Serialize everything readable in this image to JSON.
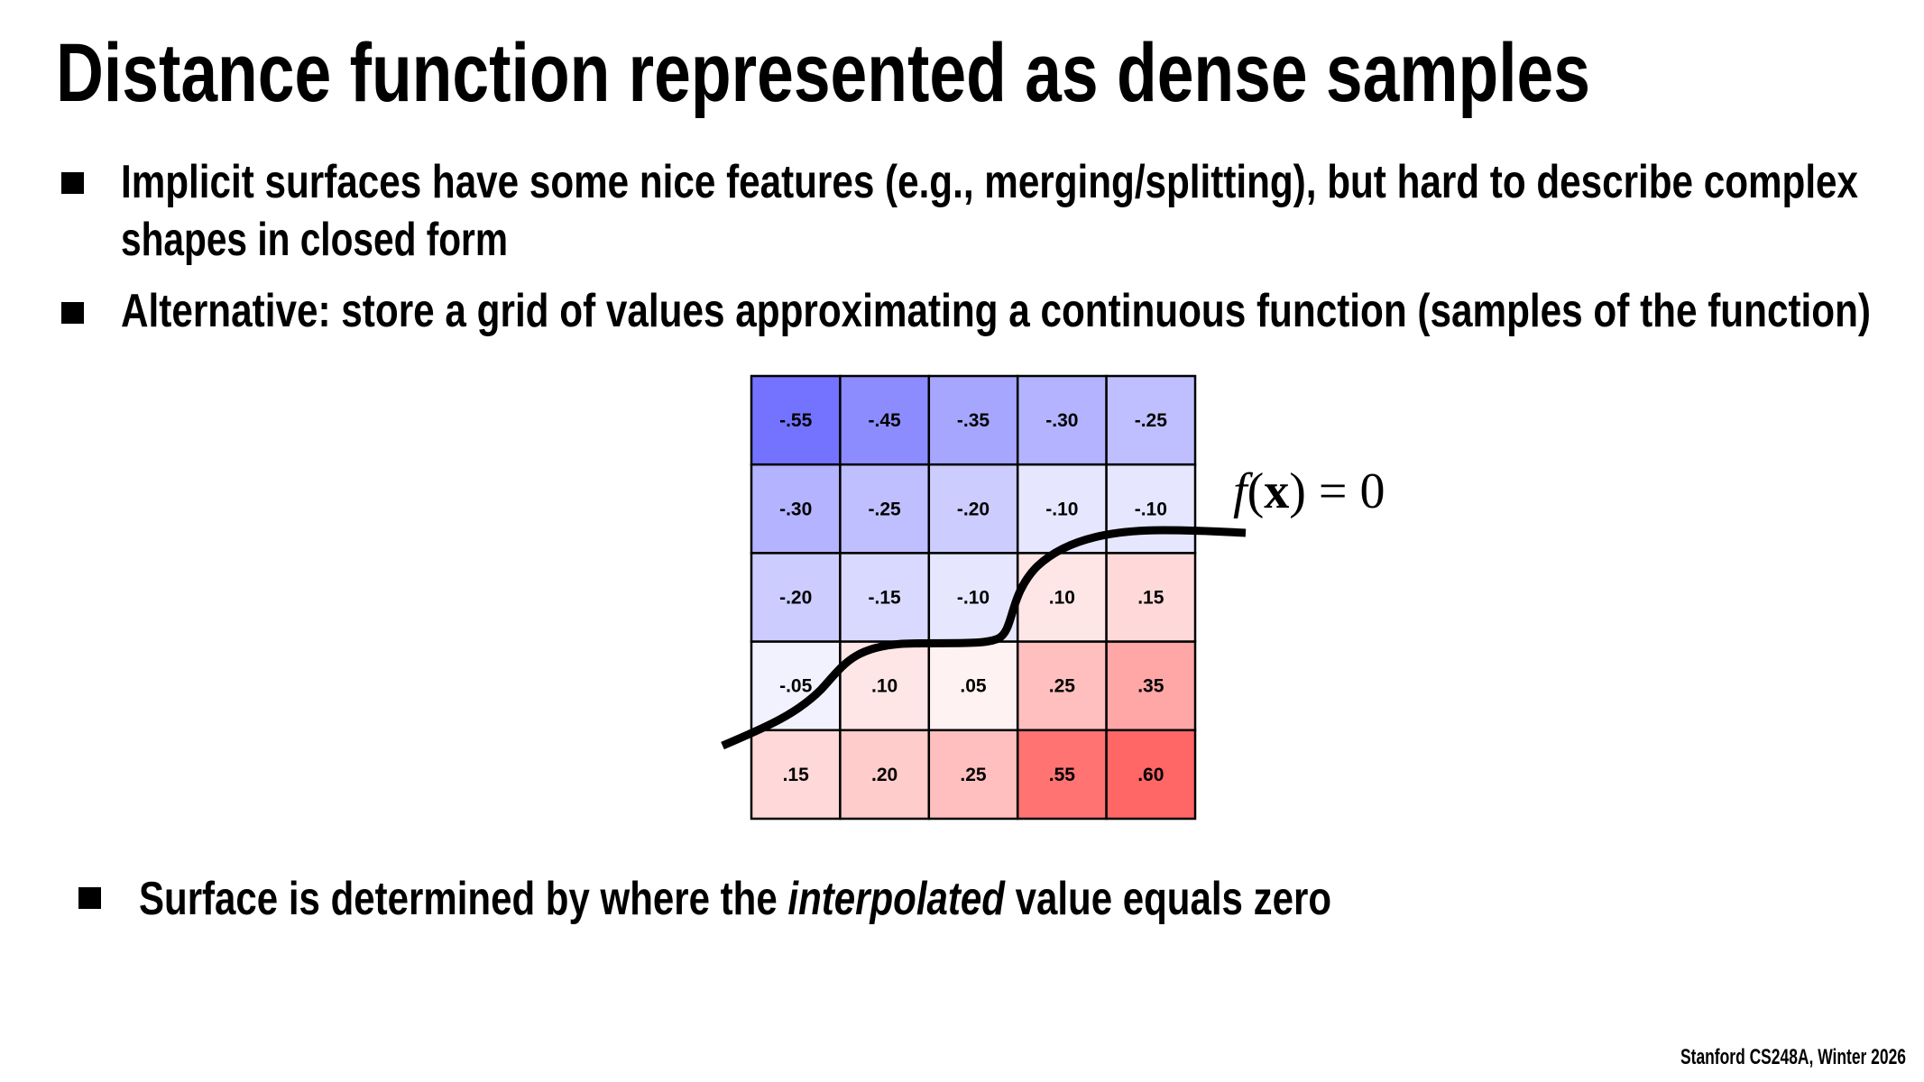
{
  "slide": {
    "title": "Distance function represented as dense samples",
    "bullets": [
      {
        "lines": [
          "Implicit surfaces have some nice features (e.g., merging/splitting), but hard to describe complex",
          "shapes in closed form"
        ]
      },
      {
        "lines": [
          "Alternative: store a grid of values approximating a continuous function (samples of the function)"
        ]
      }
    ],
    "bottom_bullet": {
      "before": "Surface is determined by where the ",
      "italic": "interpolated",
      "after": " value equals zero"
    },
    "footer": "Stanford CS248A, Winter 2026",
    "figure": {
      "equation": {
        "f": "f",
        "open": "(",
        "x": "x",
        "close": ")",
        "eq": " = 0"
      },
      "grid_labels": [
        [
          "-.55",
          "-.45",
          "-.35",
          "-.30",
          "-.25"
        ],
        [
          "-.30",
          "-.25",
          "-.20",
          "-.10",
          "-.10"
        ],
        [
          "-.20",
          "-.15",
          "-.10",
          ".10",
          ".15"
        ],
        [
          "-.05",
          ".10",
          ".05",
          ".25",
          ".35"
        ],
        [
          ".15",
          ".20",
          ".25",
          ".55",
          ".60"
        ]
      ],
      "grid_values": [
        [
          -0.55,
          -0.45,
          -0.35,
          -0.3,
          -0.25
        ],
        [
          -0.3,
          -0.25,
          -0.2,
          -0.1,
          -0.1
        ],
        [
          -0.2,
          -0.15,
          -0.1,
          0.1,
          0.15
        ],
        [
          -0.05,
          0.1,
          0.05,
          0.25,
          0.35
        ],
        [
          0.15,
          0.2,
          0.25,
          0.55,
          0.6
        ]
      ],
      "colors": {
        "negative": "#0000ff",
        "positive": "#ff0000",
        "curve": "#000000"
      }
    }
  }
}
